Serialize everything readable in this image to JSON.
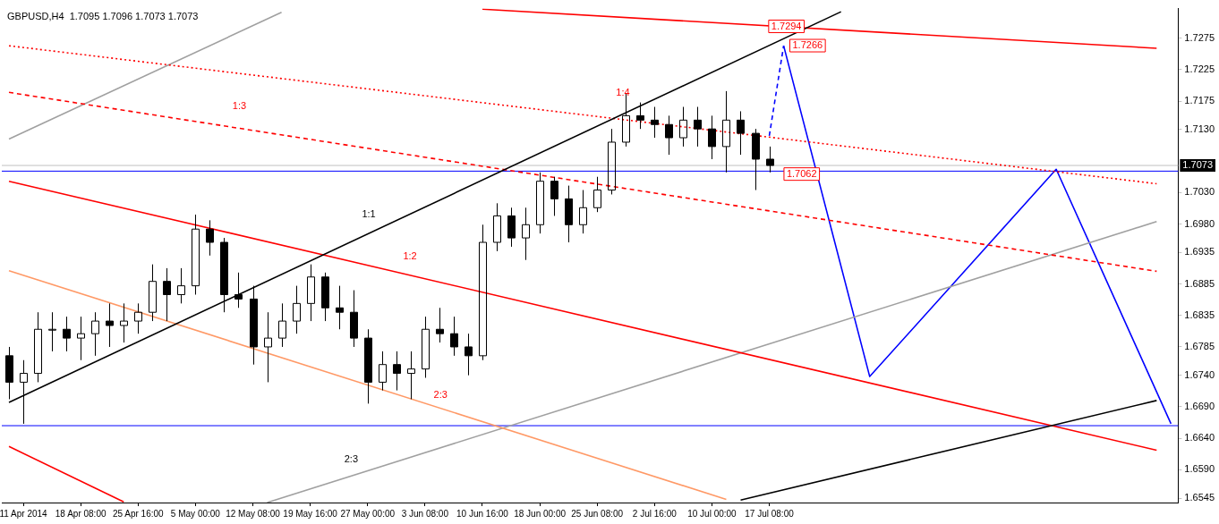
{
  "chart_data": {
    "type": "candlestick",
    "title": "GBPUSD,H4  1.7095 1.7096 1.7073 1.7073",
    "color": "#000000",
    "categories": [
      null,
      "11 Apr 2014",
      null,
      null,
      null,
      "18 Apr 08:00",
      null,
      null,
      null,
      "25 Apr 16:00",
      null,
      null,
      null,
      "5 May 00:00",
      null,
      null,
      null,
      "12 May 08:00",
      null,
      null,
      null,
      "19 May 16:00",
      null,
      null,
      null,
      "27 May 00:00",
      null,
      null,
      null,
      "3 Jun 08:00",
      null,
      null,
      null,
      "10 Jun 16:00",
      null,
      null,
      null,
      "18 Jun 00:00",
      null,
      null,
      null,
      "25 Jun 08:00",
      null,
      null,
      null,
      "2 Jul 16:00",
      null,
      null,
      null,
      "10 Jul 00:00",
      null,
      null,
      null,
      "17 Jul 08:00",
      null,
      null,
      null,
      null,
      null,
      null,
      null,
      null,
      null,
      null,
      null,
      null,
      null,
      null,
      null,
      null,
      null,
      null,
      null,
      null,
      null,
      null,
      null,
      null,
      null,
      null,
      null,
      null
    ],
    "ohlc": [
      [
        1.6771,
        1.6785,
        1.6702,
        1.6729
      ],
      [
        1.6729,
        1.6764,
        1.6663,
        1.6743
      ],
      [
        1.6743,
        1.684,
        1.6729,
        1.6813
      ],
      [
        1.6813,
        1.684,
        1.6778,
        1.6813
      ],
      [
        1.6813,
        1.6833,
        1.6778,
        1.6799
      ],
      [
        1.6799,
        1.6833,
        1.6764,
        1.6806
      ],
      [
        1.6806,
        1.684,
        1.6771,
        1.6826
      ],
      [
        1.6826,
        1.6854,
        1.6785,
        1.6819
      ],
      [
        1.6819,
        1.6854,
        1.6792,
        1.6826
      ],
      [
        1.6826,
        1.6854,
        1.6806,
        1.684
      ],
      [
        1.684,
        1.6916,
        1.6826,
        1.6889
      ],
      [
        1.6889,
        1.691,
        1.6826,
        1.6868
      ],
      [
        1.6868,
        1.691,
        1.6854,
        1.6882
      ],
      [
        1.6882,
        1.6995,
        1.6868,
        1.6972
      ],
      [
        1.6972,
        1.6986,
        1.693,
        1.6951
      ],
      [
        1.6951,
        1.6958,
        1.684,
        1.6868
      ],
      [
        1.6868,
        1.6903,
        1.6847,
        1.6861
      ],
      [
        1.6861,
        1.6882,
        1.6757,
        1.6785
      ],
      [
        1.6785,
        1.684,
        1.6729,
        1.6799
      ],
      [
        1.6799,
        1.6854,
        1.6785,
        1.6826
      ],
      [
        1.6826,
        1.6882,
        1.6806,
        1.6854
      ],
      [
        1.6854,
        1.6916,
        1.6826,
        1.6896
      ],
      [
        1.6896,
        1.6903,
        1.6826,
        1.6847
      ],
      [
        1.6847,
        1.6882,
        1.6813,
        1.684
      ],
      [
        1.684,
        1.6875,
        1.6785,
        1.6799
      ],
      [
        1.6799,
        1.6813,
        1.6695,
        1.6729
      ],
      [
        1.6729,
        1.6778,
        1.6716,
        1.6757
      ],
      [
        1.6757,
        1.6778,
        1.6716,
        1.6743
      ],
      [
        1.6743,
        1.6778,
        1.6702,
        1.675
      ],
      [
        1.675,
        1.6833,
        1.6736,
        1.6813
      ],
      [
        1.6813,
        1.6847,
        1.6792,
        1.6806
      ],
      [
        1.6806,
        1.6833,
        1.6771,
        1.6785
      ],
      [
        1.6785,
        1.6806,
        1.674,
        1.6771
      ],
      [
        1.6771,
        1.6979,
        1.6764,
        1.6951
      ],
      [
        1.6951,
        1.7013,
        1.6937,
        1.6993
      ],
      [
        1.6993,
        1.7006,
        1.6944,
        1.6958
      ],
      [
        1.6958,
        1.7006,
        1.6923,
        1.6979
      ],
      [
        1.6979,
        1.7062,
        1.6965,
        1.7048
      ],
      [
        1.7048,
        1.7055,
        1.6993,
        1.702
      ],
      [
        1.702,
        1.7041,
        1.6951,
        1.6979
      ],
      [
        1.6979,
        1.7034,
        1.6965,
        1.7006
      ],
      [
        1.7006,
        1.7055,
        1.6999,
        1.7034
      ],
      [
        1.7034,
        1.7131,
        1.7027,
        1.711
      ],
      [
        1.711,
        1.7187,
        1.7103,
        1.7152
      ],
      [
        1.7152,
        1.7173,
        1.7131,
        1.7145
      ],
      [
        1.7145,
        1.7166,
        1.7117,
        1.7138
      ],
      [
        1.7138,
        1.7152,
        1.709,
        1.7117
      ],
      [
        1.7117,
        1.7166,
        1.7103,
        1.7145
      ],
      [
        1.7145,
        1.7166,
        1.7103,
        1.7131
      ],
      [
        1.7131,
        1.7152,
        1.7083,
        1.7103
      ],
      [
        1.7103,
        1.7191,
        1.7062,
        1.7145
      ],
      [
        1.7145,
        1.7159,
        1.709,
        1.7124
      ],
      [
        1.7124,
        1.7131,
        1.7034,
        1.7083
      ],
      [
        1.7083,
        1.7103,
        1.7062,
        1.7073
      ],
      null,
      null,
      null,
      null,
      null,
      null,
      null,
      null,
      null,
      null,
      null,
      null,
      null,
      null,
      null,
      null,
      null,
      null,
      null,
      null,
      null,
      null,
      null,
      null,
      null,
      null,
      null,
      null
    ],
    "series": [
      {
        "type": "line",
        "color": "#000000",
        "values": [
          1.6697,
          null,
          null,
          null,
          null,
          null,
          null,
          null,
          null,
          null,
          null,
          null,
          null,
          null,
          null,
          null,
          null,
          null,
          null,
          null,
          null,
          null,
          null,
          null,
          null,
          null,
          null,
          null,
          null,
          null,
          null,
          null,
          null,
          null,
          null,
          null,
          null,
          null,
          null,
          null,
          null,
          null,
          null,
          null,
          null,
          null,
          null,
          null,
          null,
          null,
          null,
          null,
          null,
          null,
          null,
          null,
          null,
          null,
          1.7317,
          null,
          null,
          null,
          null,
          null,
          null,
          null,
          null,
          null,
          null,
          null,
          null,
          null,
          null,
          null,
          null,
          null,
          null,
          null,
          null,
          null,
          null,
          null
        ]
      },
      {
        "type": "line",
        "color": "#000000",
        "values": [
          null,
          null,
          null,
          null,
          null,
          null,
          null,
          null,
          null,
          null,
          null,
          null,
          null,
          null,
          null,
          null,
          null,
          null,
          null,
          null,
          null,
          null,
          null,
          null,
          null,
          null,
          null,
          null,
          null,
          null,
          null,
          null,
          null,
          null,
          null,
          null,
          null,
          null,
          null,
          null,
          null,
          null,
          null,
          null,
          null,
          null,
          null,
          null,
          null,
          null,
          null,
          1.6542,
          null,
          null,
          null,
          null,
          null,
          null,
          null,
          null,
          null,
          null,
          null,
          null,
          null,
          null,
          null,
          null,
          null,
          null,
          null,
          null,
          null,
          null,
          null,
          null,
          null,
          null,
          null,
          null,
          1.67,
          null
        ]
      },
      {
        "type": "line",
        "color": "#ff0000",
        "values": [
          1.7048,
          null,
          null,
          null,
          null,
          null,
          null,
          null,
          null,
          null,
          null,
          null,
          null,
          null,
          null,
          null,
          null,
          null,
          null,
          null,
          null,
          null,
          null,
          null,
          null,
          null,
          null,
          null,
          null,
          null,
          null,
          null,
          null,
          null,
          null,
          null,
          null,
          null,
          null,
          null,
          null,
          null,
          null,
          null,
          null,
          null,
          null,
          null,
          null,
          null,
          null,
          null,
          null,
          null,
          null,
          null,
          null,
          null,
          null,
          null,
          null,
          null,
          null,
          null,
          null,
          null,
          null,
          null,
          null,
          null,
          null,
          null,
          null,
          null,
          null,
          null,
          null,
          null,
          null,
          null,
          1.6621,
          null
        ]
      },
      {
        "type": "line",
        "color": "#ff0000",
        "values": [
          1.6627,
          null,
          null,
          null,
          null,
          null,
          null,
          null,
          1.6539,
          null,
          null,
          null,
          null,
          null,
          null,
          null,
          null,
          null,
          null,
          null,
          null,
          null,
          null,
          null,
          null,
          null,
          null,
          null,
          null,
          null,
          null,
          null,
          null,
          null,
          null,
          null,
          null,
          null,
          null,
          null,
          null,
          null,
          null,
          null,
          null,
          null,
          null,
          null,
          null,
          null,
          null,
          null,
          null,
          null,
          null,
          null,
          null,
          null,
          null,
          null,
          null,
          null,
          null,
          null,
          null,
          null,
          null,
          null,
          null,
          null,
          null,
          null,
          null,
          null,
          null,
          null,
          null,
          null,
          null,
          null,
          null,
          null
        ]
      },
      {
        "type": "line",
        "color": "#ff0000",
        "values": [
          null,
          null,
          null,
          null,
          null,
          null,
          null,
          null,
          null,
          null,
          null,
          null,
          null,
          null,
          null,
          null,
          null,
          null,
          null,
          null,
          null,
          null,
          null,
          null,
          null,
          null,
          null,
          null,
          null,
          null,
          null,
          null,
          null,
          1.7321,
          null,
          null,
          null,
          null,
          null,
          null,
          null,
          null,
          null,
          null,
          null,
          null,
          null,
          null,
          null,
          null,
          null,
          null,
          null,
          null,
          null,
          null,
          null,
          null,
          null,
          null,
          null,
          null,
          null,
          null,
          null,
          null,
          null,
          null,
          null,
          null,
          null,
          null,
          null,
          null,
          null,
          null,
          null,
          null,
          null,
          null,
          1.7259,
          null
        ]
      },
      {
        "type": "line",
        "color": "#ff0000",
        "line_style": "dotted",
        "values": [
          1.7263,
          null,
          null,
          null,
          null,
          null,
          null,
          null,
          null,
          null,
          null,
          null,
          null,
          null,
          null,
          null,
          null,
          null,
          null,
          null,
          null,
          null,
          null,
          null,
          null,
          null,
          null,
          null,
          null,
          null,
          null,
          null,
          null,
          null,
          null,
          null,
          null,
          null,
          null,
          null,
          null,
          null,
          null,
          null,
          null,
          null,
          null,
          null,
          null,
          null,
          null,
          null,
          null,
          null,
          null,
          null,
          null,
          null,
          null,
          null,
          null,
          null,
          null,
          null,
          null,
          null,
          null,
          null,
          null,
          null,
          null,
          null,
          null,
          null,
          null,
          null,
          null,
          null,
          null,
          null,
          1.7044,
          null
        ]
      },
      {
        "type": "line",
        "color": "#ff0000",
        "line_style": "dashed",
        "values": [
          1.7189,
          null,
          null,
          null,
          null,
          null,
          null,
          null,
          null,
          null,
          null,
          null,
          null,
          null,
          null,
          null,
          null,
          null,
          null,
          null,
          null,
          null,
          null,
          null,
          null,
          null,
          null,
          null,
          null,
          null,
          null,
          null,
          null,
          null,
          null,
          null,
          null,
          null,
          null,
          null,
          null,
          null,
          null,
          null,
          null,
          null,
          null,
          null,
          null,
          null,
          null,
          null,
          null,
          null,
          null,
          null,
          null,
          null,
          null,
          null,
          null,
          null,
          null,
          null,
          null,
          null,
          null,
          null,
          null,
          null,
          null,
          null,
          null,
          null,
          null,
          null,
          null,
          null,
          null,
          null,
          1.6905,
          null
        ]
      },
      {
        "type": "line",
        "color": "#ff9966",
        "values": [
          1.6906,
          null,
          null,
          null,
          null,
          null,
          null,
          null,
          null,
          null,
          null,
          null,
          null,
          null,
          null,
          null,
          null,
          null,
          null,
          null,
          null,
          null,
          null,
          null,
          null,
          null,
          null,
          null,
          null,
          null,
          null,
          null,
          null,
          null,
          null,
          null,
          null,
          null,
          null,
          null,
          null,
          null,
          null,
          null,
          null,
          null,
          null,
          null,
          null,
          null,
          1.6543,
          null,
          null,
          null,
          null,
          null,
          null,
          null,
          null,
          null,
          null,
          null,
          null,
          null,
          null,
          null,
          null,
          null,
          null,
          null,
          null,
          null,
          null,
          null,
          null,
          null,
          null,
          null,
          null,
          null,
          null,
          null
        ]
      },
      {
        "type": "line",
        "color": "#a0a0a0",
        "values": [
          1.7115,
          null,
          null,
          null,
          null,
          null,
          null,
          null,
          null,
          null,
          null,
          null,
          null,
          null,
          null,
          null,
          null,
          null,
          null,
          1.7316,
          null,
          null,
          null,
          null,
          null,
          null,
          null,
          null,
          null,
          null,
          null,
          null,
          null,
          null,
          null,
          null,
          null,
          null,
          null,
          null,
          null,
          null,
          null,
          null,
          null,
          null,
          null,
          null,
          null,
          null,
          null,
          null,
          null,
          null,
          null,
          null,
          null,
          null,
          null,
          null,
          null,
          null,
          null,
          null,
          null,
          null,
          null,
          null,
          null,
          null,
          null,
          null,
          null,
          null,
          null,
          null,
          null,
          null,
          null,
          null,
          null,
          null
        ]
      },
      {
        "type": "line",
        "color": "#a0a0a0",
        "values": [
          null,
          null,
          null,
          null,
          null,
          null,
          null,
          null,
          null,
          null,
          null,
          null,
          null,
          null,
          null,
          null,
          null,
          null,
          1.6538,
          null,
          null,
          null,
          null,
          null,
          null,
          null,
          null,
          null,
          null,
          null,
          null,
          null,
          null,
          null,
          null,
          null,
          null,
          null,
          null,
          null,
          null,
          null,
          null,
          null,
          null,
          null,
          null,
          null,
          null,
          null,
          null,
          null,
          null,
          null,
          null,
          null,
          null,
          null,
          null,
          null,
          null,
          null,
          null,
          null,
          null,
          null,
          null,
          null,
          null,
          null,
          null,
          null,
          null,
          null,
          null,
          null,
          null,
          null,
          null,
          null,
          1.6984,
          null
        ]
      },
      {
        "type": "line",
        "color": "#0000ff",
        "line_style": "dashed",
        "values": [
          null,
          null,
          null,
          null,
          null,
          null,
          null,
          null,
          null,
          null,
          null,
          null,
          null,
          null,
          null,
          null,
          null,
          null,
          null,
          null,
          null,
          null,
          null,
          null,
          null,
          null,
          null,
          null,
          null,
          null,
          null,
          null,
          null,
          null,
          null,
          null,
          null,
          null,
          null,
          null,
          null,
          null,
          null,
          null,
          null,
          null,
          null,
          null,
          null,
          null,
          null,
          null,
          null,
          1.712,
          1.7263,
          null,
          null,
          null,
          null,
          null,
          null,
          null,
          null,
          null,
          null,
          null,
          null,
          null,
          null,
          null,
          null,
          null,
          null,
          null,
          null,
          null,
          null,
          null,
          null,
          null,
          null,
          null
        ]
      },
      {
        "type": "line",
        "color": "#0000ff",
        "values": [
          null,
          null,
          null,
          null,
          null,
          null,
          null,
          null,
          null,
          null,
          null,
          null,
          null,
          null,
          null,
          null,
          null,
          null,
          null,
          null,
          null,
          null,
          null,
          null,
          null,
          null,
          null,
          null,
          null,
          null,
          null,
          null,
          null,
          null,
          null,
          null,
          null,
          null,
          null,
          null,
          null,
          null,
          null,
          null,
          null,
          null,
          null,
          null,
          null,
          null,
          null,
          null,
          null,
          null,
          1.7263,
          null,
          null,
          null,
          null,
          null,
          1.6738,
          null,
          null,
          null,
          null,
          null,
          null,
          null,
          null,
          null,
          null,
          null,
          null,
          1.7067,
          null,
          null,
          null,
          null,
          null,
          null,
          null,
          1.6663
        ]
      }
    ],
    "ref_lines": [
      {
        "axis": "y",
        "value": 1.7073,
        "label": "1.7073",
        "color": "#c0c0c0"
      },
      {
        "axis": "y",
        "value": 1.7064,
        "color": "#0000ff"
      },
      {
        "axis": "y",
        "value": 1.666,
        "color": "#0000ff"
      }
    ],
    "annotations": [
      "1:3",
      "1:4",
      "1:1",
      "1:2",
      "2:3",
      "2:3",
      "1.7294",
      "1.7266",
      "1.7062"
    ],
    "ylim": [
      1.6538,
      1.7322
    ],
    "yticks": [
      1.7275,
      1.7225,
      1.7175,
      {
        "value": 1.713,
        "label": "1.7130"
      },
      {
        "value": 1.703,
        "label": "1.7030"
      },
      {
        "value": 1.698,
        "label": "1.6980"
      },
      1.6935,
      1.6885,
      1.6835,
      1.6785,
      {
        "value": 1.674,
        "label": "1.6740"
      },
      {
        "value": 1.669,
        "label": "1.6690"
      },
      {
        "value": 1.664,
        "label": "1.6640"
      },
      {
        "value": 1.659,
        "label": "1.6590"
      },
      1.6545
    ],
    "grid": false,
    "legend": false
  }
}
